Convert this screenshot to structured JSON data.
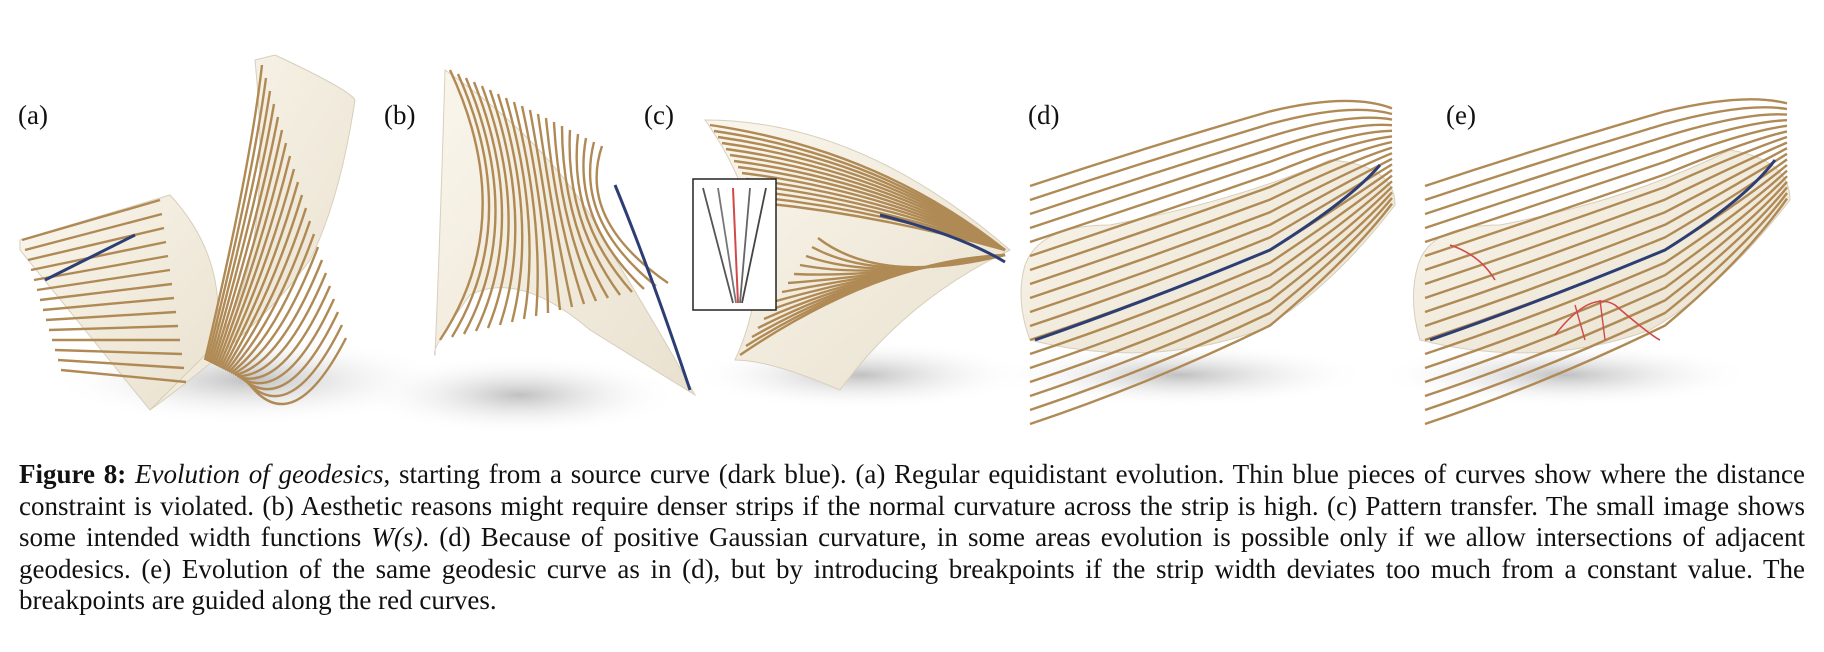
{
  "panels": [
    {
      "label": "(a)"
    },
    {
      "label": "(b)"
    },
    {
      "label": "(c)"
    },
    {
      "label": "(d)"
    },
    {
      "label": "(e)"
    }
  ],
  "caption": {
    "fig_num": "Figure 8:",
    "title": "Evolution of geodesics",
    "text_1": ", starting from a source curve (dark blue). (a) Regular equidistant evolution. Thin blue pieces of curves show where the distance constraint is violated. (b) Aesthetic reasons might require denser strips if the normal curvature across the strip is high. (c) Pattern transfer. The small image shows some intended width functions ",
    "math": "W(s)",
    "text_2": ". (d) Because of positive Gaussian curvature, in some areas evolution is possible only if we allow intersections of adjacent geodesics. (e) Evolution of the same geodesic curve as in (d), but by introducing breakpoints if the strip width deviates too much from a constant value. The breakpoints are guided along the red curves."
  },
  "colors": {
    "surface": "#f4efe3",
    "geodesic": "#b08a55",
    "source_curve": "#2c3e73",
    "violation": "#6f8fcf",
    "breakpoint": "#d04a4a",
    "shadow": "#cfcfcf"
  }
}
